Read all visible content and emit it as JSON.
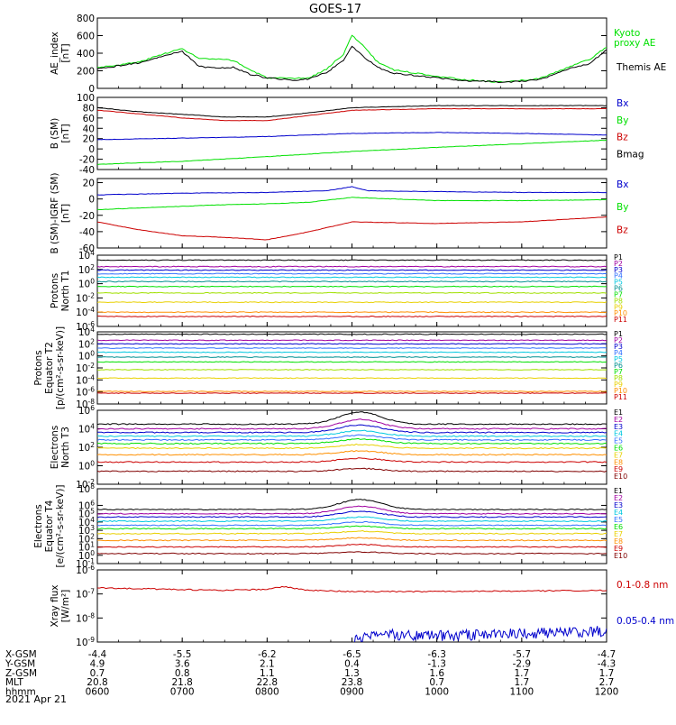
{
  "figure": {
    "title": "GOES-17",
    "date": "2021 Apr 21",
    "colors": {
      "black": "#000000",
      "green": "#00e000",
      "blue": "#0000cc",
      "red": "#cc0000",
      "cyan": "#00c8e0",
      "teal": "#009090",
      "yellow": "#e8d000",
      "orange": "#ff9000",
      "purple": "#a000a0"
    }
  },
  "chart_data": [
    {
      "type": "line",
      "ylabel": [
        "AE_index",
        "[nT]"
      ],
      "yticks": [
        "800",
        "600",
        "400",
        "200",
        "0"
      ],
      "ylim": [
        0,
        800
      ],
      "series": [
        {
          "name": "Kyoto proxy AE",
          "legend": [
            "Kyoto",
            "proxy AE"
          ],
          "color": "#00e000",
          "x": [
            6.0,
            6.2,
            6.5,
            6.8,
            7.0,
            7.2,
            7.4,
            7.6,
            7.8,
            8.0,
            8.3,
            8.5,
            8.7,
            8.9,
            9.0,
            9.1,
            9.3,
            9.5,
            9.7,
            10.0,
            10.3,
            10.6,
            10.8,
            11.0,
            11.2,
            11.4,
            11.6,
            11.8,
            12.0
          ],
          "y": [
            240,
            260,
            300,
            400,
            450,
            340,
            330,
            320,
            210,
            120,
            110,
            120,
            220,
            390,
            600,
            520,
            300,
            210,
            180,
            140,
            100,
            80,
            70,
            90,
            110,
            180,
            260,
            330,
            470
          ]
        },
        {
          "name": "Themis AE",
          "legend": [
            "Themis AE"
          ],
          "color": "#000000",
          "x": [
            6.0,
            6.2,
            6.5,
            6.8,
            7.0,
            7.2,
            7.4,
            7.6,
            7.8,
            8.0,
            8.3,
            8.5,
            8.7,
            8.9,
            9.0,
            9.1,
            9.3,
            9.5,
            9.7,
            10.0,
            10.3,
            10.6,
            10.8,
            11.0,
            11.2,
            11.4,
            11.6,
            11.8,
            12.0
          ],
          "y": [
            220,
            250,
            290,
            380,
            420,
            250,
            230,
            240,
            160,
            120,
            90,
            110,
            180,
            320,
            480,
            390,
            240,
            170,
            150,
            120,
            90,
            80,
            70,
            80,
            100,
            160,
            240,
            280,
            440
          ]
        }
      ]
    },
    {
      "type": "line",
      "ylabel": [
        "B (SM)",
        "[nT]"
      ],
      "yticks": [
        "100",
        "80",
        "60",
        "40",
        "20",
        "0",
        "-20",
        "-40"
      ],
      "ylim": [
        -40,
        100
      ],
      "series": [
        {
          "name": "Bx",
          "color": "#0000cc",
          "x": [
            6,
            7,
            8,
            9,
            10,
            11,
            12
          ],
          "y": [
            18,
            21,
            24,
            30,
            32,
            30,
            27
          ]
        },
        {
          "name": "By",
          "color": "#00e000",
          "x": [
            6,
            7,
            8,
            9,
            10,
            11,
            12
          ],
          "y": [
            -30,
            -24,
            -15,
            -5,
            3,
            10,
            17
          ]
        },
        {
          "name": "Bz",
          "color": "#cc0000",
          "x": [
            6,
            6.5,
            7,
            7.5,
            8,
            8.5,
            9,
            10,
            11,
            12
          ],
          "y": [
            75,
            68,
            60,
            55,
            55,
            65,
            75,
            78,
            78,
            78
          ]
        },
        {
          "name": "Bmag",
          "color": "#000000",
          "x": [
            6,
            6.5,
            7,
            7.5,
            8,
            8.5,
            9,
            10,
            11,
            12
          ],
          "y": [
            80,
            72,
            67,
            62,
            62,
            70,
            80,
            84,
            84,
            84
          ]
        }
      ]
    },
    {
      "type": "line",
      "ylabel": [
        "B (SM)-IGRF (SM)",
        "[nT]"
      ],
      "yticks": [
        "20",
        "0",
        "-20",
        "-40",
        "-60"
      ],
      "ylim": [
        -60,
        25
      ],
      "series": [
        {
          "name": "Bx",
          "color": "#0000cc",
          "x": [
            6,
            7,
            8,
            8.7,
            9,
            9.2,
            10,
            11,
            12
          ],
          "y": [
            5,
            7,
            8,
            10,
            15,
            10,
            9,
            8,
            8
          ]
        },
        {
          "name": "By",
          "color": "#00e000",
          "x": [
            6,
            7,
            7.5,
            8,
            8.5,
            9,
            10,
            11,
            12
          ],
          "y": [
            -13,
            -9,
            -7,
            -6,
            -4,
            2,
            -2,
            -2,
            -1
          ]
        },
        {
          "name": "Bz",
          "color": "#cc0000",
          "x": [
            6,
            6.5,
            7,
            7.5,
            8,
            8.5,
            9,
            10,
            11,
            12
          ],
          "y": [
            -28,
            -38,
            -45,
            -47,
            -50,
            -40,
            -28,
            -30,
            -28,
            -22
          ]
        }
      ]
    },
    {
      "type": "line",
      "logscale": true,
      "ylabel": [
        "Protons",
        "North T1"
      ],
      "yticks": [
        "10^4",
        "10^2",
        "10^0",
        "10^-2",
        "10^-4",
        "10^-6"
      ],
      "ylim": [
        -6,
        4
      ],
      "series": [
        {
          "name": "P1",
          "color": "#000000",
          "y_log": 3.3
        },
        {
          "name": "P2",
          "color": "#a000a0",
          "y_log": 2.4
        },
        {
          "name": "P3",
          "color": "#0000cc",
          "y_log": 1.9
        },
        {
          "name": "P4",
          "color": "#3070ff",
          "y_log": 1.4
        },
        {
          "name": "P5",
          "color": "#00c8e0",
          "y_log": 0.9
        },
        {
          "name": "P6",
          "color": "#009090",
          "y_log": 0.3
        },
        {
          "name": "P7",
          "color": "#00e000",
          "y_log": -0.4
        },
        {
          "name": "P8",
          "color": "#a0e000",
          "y_log": -1.3
        },
        {
          "name": "P9",
          "color": "#e8d000",
          "y_log": -2.6
        },
        {
          "name": "P10",
          "color": "#ff9000",
          "y_log": -4.0
        },
        {
          "name": "P11",
          "color": "#cc0000",
          "y_log": -4.6
        }
      ]
    },
    {
      "type": "line",
      "logscale": true,
      "ylabel": [
        "Protons",
        "Equator T2",
        "[p/(cm²-s-sr-keV)]"
      ],
      "yticks": [
        "10^4",
        "10^2",
        "10^0",
        "10^-2",
        "10^-4",
        "10^-6",
        "10^-8"
      ],
      "ylim": [
        -8,
        4
      ],
      "series": [
        {
          "name": "P1",
          "color": "#000000",
          "y_log": 3.6
        },
        {
          "name": "P2",
          "color": "#a000a0",
          "y_log": 2.6
        },
        {
          "name": "P3",
          "color": "#0000cc",
          "y_log": 2.0
        },
        {
          "name": "P4",
          "color": "#3070ff",
          "y_log": 1.3
        },
        {
          "name": "P5",
          "color": "#00c8e0",
          "y_log": 0.6
        },
        {
          "name": "P6",
          "color": "#009090",
          "y_log": -0.2
        },
        {
          "name": "P7",
          "color": "#00e000",
          "y_log": -1.0
        },
        {
          "name": "P8",
          "color": "#a0e000",
          "y_log": -2.3
        },
        {
          "name": "P9",
          "color": "#e8d000",
          "y_log": -3.7
        },
        {
          "name": "P10",
          "color": "#ff9000",
          "y_log": -5.9
        },
        {
          "name": "P11",
          "color": "#cc0000",
          "y_log": -6.2
        }
      ]
    },
    {
      "type": "line",
      "logscale": true,
      "ylabel": [
        "Electrons",
        "North T3"
      ],
      "yticks": [
        "10^6",
        "10^4",
        "10^2",
        "10^0",
        "10^-2"
      ],
      "ylim": [
        -2,
        6
      ],
      "series": [
        {
          "name": "E1",
          "color": "#000000",
          "y_log": 4.5,
          "peak": 5.8
        },
        {
          "name": "E2",
          "color": "#a000a0",
          "y_log": 4.0,
          "peak": 5.0
        },
        {
          "name": "E3",
          "color": "#0000cc",
          "y_log": 3.6,
          "peak": 4.4
        },
        {
          "name": "E4",
          "color": "#00c8e0",
          "y_log": 3.2,
          "peak": 3.8
        },
        {
          "name": "E5",
          "color": "#3070ff",
          "y_log": 2.8,
          "peak": 3.3
        },
        {
          "name": "E6",
          "color": "#00e000",
          "y_log": 2.4,
          "peak": 2.9
        },
        {
          "name": "E7",
          "color": "#e8d000",
          "y_log": 1.9,
          "peak": 2.3
        },
        {
          "name": "E8",
          "color": "#ff9000",
          "y_log": 1.2,
          "peak": 1.6
        },
        {
          "name": "E9",
          "color": "#cc0000",
          "y_log": 0.4,
          "peak": 0.8
        },
        {
          "name": "E10",
          "color": "#800000",
          "y_log": -0.6,
          "peak": -0.3
        }
      ]
    },
    {
      "type": "line",
      "logscale": true,
      "ylabel": [
        "Electrons",
        "Equator T4",
        "[e/(cm²-s-sr-keV)]"
      ],
      "yticks": [
        "10^8",
        "10^6",
        "10^5",
        "10^4",
        "10^3",
        "10^2",
        "10^1",
        "10^0",
        "10^-1"
      ],
      "ylim": [
        -1,
        8
      ],
      "series": [
        {
          "name": "E1",
          "color": "#000000",
          "y_log": 5.5,
          "peak": 6.7
        },
        {
          "name": "E2",
          "color": "#a000a0",
          "y_log": 5.0,
          "peak": 5.9
        },
        {
          "name": "E3",
          "color": "#0000cc",
          "y_log": 4.6,
          "peak": 5.3
        },
        {
          "name": "E4",
          "color": "#00c8e0",
          "y_log": 4.1,
          "peak": 4.6
        },
        {
          "name": "E5",
          "color": "#3070ff",
          "y_log": 3.6,
          "peak": 4.0
        },
        {
          "name": "E6",
          "color": "#00e000",
          "y_log": 3.2,
          "peak": 3.5
        },
        {
          "name": "E7",
          "color": "#e8d000",
          "y_log": 2.6,
          "peak": 2.9
        },
        {
          "name": "E8",
          "color": "#ff9000",
          "y_log": 1.8,
          "peak": 2.1
        },
        {
          "name": "E9",
          "color": "#cc0000",
          "y_log": 1.0,
          "peak": 1.3
        },
        {
          "name": "E10",
          "color": "#800000",
          "y_log": 0.2,
          "peak": 0.4
        }
      ]
    },
    {
      "type": "line",
      "logscale": true,
      "ylabel": [
        "Xray flux",
        "[W/m²]"
      ],
      "yticks": [
        "10^-6",
        "10^-7",
        "10^-8",
        "10^-9"
      ],
      "ylim": [
        -9,
        -6
      ],
      "series": [
        {
          "name": "0.1-0.8 nm",
          "color": "#cc0000",
          "x": [
            6,
            6.5,
            7,
            7.5,
            8,
            8.2,
            8.5,
            9,
            10,
            11,
            12
          ],
          "y_log": [
            -6.75,
            -6.78,
            -6.82,
            -6.85,
            -6.8,
            -6.7,
            -6.85,
            -6.9,
            -6.9,
            -6.88,
            -6.85
          ]
        },
        {
          "name": "0.05-0.4 nm",
          "color": "#0000cc",
          "x": [
            9.0,
            9.3,
            9.5,
            10,
            10.5,
            11,
            11.5,
            12
          ],
          "y_log": [
            -9.0,
            -8.6,
            -8.7,
            -8.75,
            -8.7,
            -8.65,
            -8.6,
            -8.55
          ]
        }
      ]
    }
  ],
  "xaxis": {
    "x_ticks": [
      6,
      7,
      8,
      9,
      10,
      11,
      12
    ],
    "rows": [
      {
        "label": "X-GSM",
        "values": [
          "-4.4",
          "-5.5",
          "-6.2",
          "-6.5",
          "-6.3",
          "-5.7",
          "-4.7"
        ]
      },
      {
        "label": "Y-GSM",
        "values": [
          "4.9",
          "3.6",
          "2.1",
          "0.4",
          "-1.3",
          "-2.9",
          "-4.3"
        ]
      },
      {
        "label": "Z-GSM",
        "values": [
          "0.7",
          "0.8",
          "1.1",
          "1.3",
          "1.6",
          "1.7",
          "1.7"
        ]
      },
      {
        "label": "MLT",
        "values": [
          "20.8",
          "21.8",
          "22.8",
          "23.8",
          "0.7",
          "1.7",
          "2.7"
        ]
      },
      {
        "label": "hhmm",
        "values": [
          "0600",
          "0700",
          "0800",
          "0900",
          "1000",
          "1100",
          "1200"
        ]
      }
    ]
  }
}
